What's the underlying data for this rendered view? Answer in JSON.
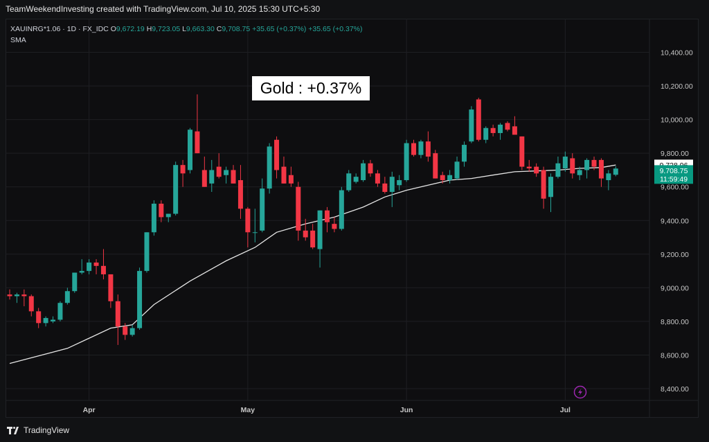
{
  "caption": "TeamWeekendInvesting created with TradingView.com, Jul 10, 2025 15:30 UTC+5:30",
  "legend": {
    "symbol_line": "XAUINRG*1.06 · 1D · FX_IDC",
    "open_key": "O",
    "open": "9,672.19",
    "high_key": "H",
    "high": "9,723.05",
    "low_key": "L",
    "low": "9,663.30",
    "close_key": "C",
    "close": "9,708.75",
    "change1": "+35.65 (+0.37%)",
    "change2": "+35.65 (+0.37%)",
    "indicator": "SMA"
  },
  "title_box": "Gold : +0.37%",
  "footer_brand": "TradingView",
  "colors": {
    "up": "#26a69a",
    "down": "#f23645",
    "sma": "#e6e6e6",
    "grid": "#1e1f23",
    "background": "#0e0e10"
  },
  "icons": {
    "flash": "lightning-icon",
    "logo": "tradingview-logo-icon"
  },
  "chart_data": {
    "type": "candlestick",
    "y_ticks": [
      "10,400.00",
      "10,200.00",
      "10,000.00",
      "9,800.00",
      "9,600.00",
      "9,400.00",
      "9,200.00",
      "9,000.00",
      "8,800.00",
      "8,600.00",
      "8,400.00"
    ],
    "y_tick_values": [
      10400,
      10200,
      10000,
      9800,
      9600,
      9400,
      9200,
      9000,
      8800,
      8600,
      8400
    ],
    "ylim": [
      8330,
      10600
    ],
    "x_labels": [
      {
        "label": "Apr",
        "bar": 11
      },
      {
        "label": "May",
        "bar": 33
      },
      {
        "label": "Jun",
        "bar": 55
      },
      {
        "label": "Jul",
        "bar": 77
      }
    ],
    "bars_total": 88,
    "price_tags": [
      {
        "label": "9,728.96",
        "value": 9729,
        "style": "white"
      },
      {
        "label": "9,708.75",
        "value": 9696,
        "style": "green"
      },
      {
        "label": "11:59:49",
        "value": 9647,
        "style": "green"
      }
    ],
    "candles": [
      {
        "o": 8960,
        "h": 8990,
        "l": 8930,
        "c": 8950
      },
      {
        "o": 8950,
        "h": 8970,
        "l": 8910,
        "c": 8960
      },
      {
        "o": 8960,
        "h": 8990,
        "l": 8890,
        "c": 8950
      },
      {
        "o": 8950,
        "h": 8960,
        "l": 8830,
        "c": 8860
      },
      {
        "o": 8860,
        "h": 8880,
        "l": 8760,
        "c": 8790
      },
      {
        "o": 8790,
        "h": 8830,
        "l": 8770,
        "c": 8820
      },
      {
        "o": 8800,
        "h": 8830,
        "l": 8790,
        "c": 8810
      },
      {
        "o": 8810,
        "h": 8920,
        "l": 8800,
        "c": 8910
      },
      {
        "o": 8910,
        "h": 9000,
        "l": 8900,
        "c": 8980
      },
      {
        "o": 8980,
        "h": 9090,
        "l": 8970,
        "c": 9090
      },
      {
        "o": 9090,
        "h": 9170,
        "l": 9080,
        "c": 9100
      },
      {
        "o": 9100,
        "h": 9170,
        "l": 9080,
        "c": 9150
      },
      {
        "o": 9150,
        "h": 9170,
        "l": 9080,
        "c": 9130
      },
      {
        "o": 9130,
        "h": 9230,
        "l": 9050,
        "c": 9080
      },
      {
        "o": 9080,
        "h": 9080,
        "l": 8880,
        "c": 8920
      },
      {
        "o": 8920,
        "h": 8960,
        "l": 8660,
        "c": 8770
      },
      {
        "o": 8770,
        "h": 8790,
        "l": 8690,
        "c": 8720
      },
      {
        "o": 8720,
        "h": 8780,
        "l": 8710,
        "c": 8760
      },
      {
        "o": 8760,
        "h": 9120,
        "l": 8750,
        "c": 9100
      },
      {
        "o": 9100,
        "h": 9330,
        "l": 9090,
        "c": 9330
      },
      {
        "o": 9330,
        "h": 9520,
        "l": 9310,
        "c": 9500
      },
      {
        "o": 9500,
        "h": 9520,
        "l": 9390,
        "c": 9420
      },
      {
        "o": 9420,
        "h": 9440,
        "l": 9390,
        "c": 9440
      },
      {
        "o": 9440,
        "h": 9750,
        "l": 9430,
        "c": 9730
      },
      {
        "o": 9730,
        "h": 9760,
        "l": 9600,
        "c": 9680
      },
      {
        "o": 9700,
        "h": 9950,
        "l": 9680,
        "c": 9940
      },
      {
        "o": 9930,
        "h": 10150,
        "l": 9800,
        "c": 9800
      },
      {
        "o": 9700,
        "h": 9780,
        "l": 9600,
        "c": 9600
      },
      {
        "o": 9620,
        "h": 9760,
        "l": 9570,
        "c": 9700
      },
      {
        "o": 9720,
        "h": 9800,
        "l": 9650,
        "c": 9660
      },
      {
        "o": 9670,
        "h": 9720,
        "l": 9620,
        "c": 9700
      },
      {
        "o": 9700,
        "h": 9730,
        "l": 9620,
        "c": 9620
      },
      {
        "o": 9640,
        "h": 9730,
        "l": 9410,
        "c": 9470
      },
      {
        "o": 9470,
        "h": 9480,
        "l": 9240,
        "c": 9330
      },
      {
        "o": 9330,
        "h": 9470,
        "l": 9270,
        "c": 9330
      },
      {
        "o": 9340,
        "h": 9650,
        "l": 9330,
        "c": 9590
      },
      {
        "o": 9590,
        "h": 9860,
        "l": 9560,
        "c": 9840
      },
      {
        "o": 9880,
        "h": 9900,
        "l": 9650,
        "c": 9700
      },
      {
        "o": 9720,
        "h": 9780,
        "l": 9620,
        "c": 9620
      },
      {
        "o": 9670,
        "h": 9720,
        "l": 9600,
        "c": 9620
      },
      {
        "o": 9600,
        "h": 9630,
        "l": 9280,
        "c": 9340
      },
      {
        "o": 9340,
        "h": 9410,
        "l": 9280,
        "c": 9300
      },
      {
        "o": 9340,
        "h": 9380,
        "l": 9230,
        "c": 9240
      },
      {
        "o": 9230,
        "h": 9460,
        "l": 9120,
        "c": 9460
      },
      {
        "o": 9460,
        "h": 9480,
        "l": 9330,
        "c": 9390
      },
      {
        "o": 9380,
        "h": 9420,
        "l": 9330,
        "c": 9350
      },
      {
        "o": 9350,
        "h": 9600,
        "l": 9340,
        "c": 9580
      },
      {
        "o": 9580,
        "h": 9700,
        "l": 9570,
        "c": 9680
      },
      {
        "o": 9630,
        "h": 9680,
        "l": 9620,
        "c": 9660
      },
      {
        "o": 9640,
        "h": 9760,
        "l": 9630,
        "c": 9740
      },
      {
        "o": 9740,
        "h": 9760,
        "l": 9660,
        "c": 9680
      },
      {
        "o": 9680,
        "h": 9700,
        "l": 9600,
        "c": 9620
      },
      {
        "o": 9620,
        "h": 9660,
        "l": 9560,
        "c": 9570
      },
      {
        "o": 9570,
        "h": 9690,
        "l": 9480,
        "c": 9660
      },
      {
        "o": 9610,
        "h": 9670,
        "l": 9580,
        "c": 9640
      },
      {
        "o": 9640,
        "h": 9880,
        "l": 9630,
        "c": 9860
      },
      {
        "o": 9860,
        "h": 9880,
        "l": 9780,
        "c": 9790
      },
      {
        "o": 9790,
        "h": 9880,
        "l": 9770,
        "c": 9870
      },
      {
        "o": 9870,
        "h": 9930,
        "l": 9750,
        "c": 9780
      },
      {
        "o": 9800,
        "h": 9820,
        "l": 9650,
        "c": 9650
      },
      {
        "o": 9670,
        "h": 9690,
        "l": 9620,
        "c": 9640
      },
      {
        "o": 9640,
        "h": 9700,
        "l": 9620,
        "c": 9670
      },
      {
        "o": 9650,
        "h": 9780,
        "l": 9640,
        "c": 9750
      },
      {
        "o": 9750,
        "h": 9870,
        "l": 9720,
        "c": 9850
      },
      {
        "o": 9870,
        "h": 10080,
        "l": 9860,
        "c": 10060
      },
      {
        "o": 10120,
        "h": 10130,
        "l": 9870,
        "c": 9880
      },
      {
        "o": 9880,
        "h": 9960,
        "l": 9860,
        "c": 9950
      },
      {
        "o": 9950,
        "h": 9970,
        "l": 9900,
        "c": 9920
      },
      {
        "o": 9920,
        "h": 9980,
        "l": 9880,
        "c": 9970
      },
      {
        "o": 9980,
        "h": 9990,
        "l": 9930,
        "c": 9940
      },
      {
        "o": 9960,
        "h": 10020,
        "l": 9910,
        "c": 9910
      },
      {
        "o": 9900,
        "h": 9900,
        "l": 9700,
        "c": 9720
      },
      {
        "o": 9720,
        "h": 9760,
        "l": 9690,
        "c": 9710
      },
      {
        "o": 9720,
        "h": 9740,
        "l": 9660,
        "c": 9680
      },
      {
        "o": 9700,
        "h": 9720,
        "l": 9470,
        "c": 9530
      },
      {
        "o": 9540,
        "h": 9680,
        "l": 9450,
        "c": 9660
      },
      {
        "o": 9660,
        "h": 9780,
        "l": 9650,
        "c": 9740
      },
      {
        "o": 9710,
        "h": 9810,
        "l": 9690,
        "c": 9780
      },
      {
        "o": 9770,
        "h": 9800,
        "l": 9650,
        "c": 9680
      },
      {
        "o": 9670,
        "h": 9720,
        "l": 9640,
        "c": 9700
      },
      {
        "o": 9700,
        "h": 9770,
        "l": 9650,
        "c": 9760
      },
      {
        "o": 9760,
        "h": 9780,
        "l": 9700,
        "c": 9720
      },
      {
        "o": 9760,
        "h": 9770,
        "l": 9600,
        "c": 9650
      },
      {
        "o": 9640,
        "h": 9700,
        "l": 9580,
        "c": 9680
      },
      {
        "o": 9672,
        "h": 9723,
        "l": 9663,
        "c": 9709
      }
    ],
    "sma": [
      [
        0,
        8550
      ],
      [
        8,
        8640
      ],
      [
        14,
        8760
      ],
      [
        17,
        8780
      ],
      [
        20,
        8900
      ],
      [
        25,
        9040
      ],
      [
        30,
        9160
      ],
      [
        34,
        9240
      ],
      [
        37,
        9330
      ],
      [
        41,
        9380
      ],
      [
        45,
        9420
      ],
      [
        49,
        9480
      ],
      [
        52,
        9540
      ],
      [
        55,
        9580
      ],
      [
        58,
        9610
      ],
      [
        61,
        9640
      ],
      [
        64,
        9650
      ],
      [
        67,
        9670
      ],
      [
        70,
        9690
      ],
      [
        73,
        9695
      ],
      [
        76,
        9700
      ],
      [
        79,
        9710
      ],
      [
        82,
        9715
      ],
      [
        84,
        9730
      ]
    ]
  }
}
